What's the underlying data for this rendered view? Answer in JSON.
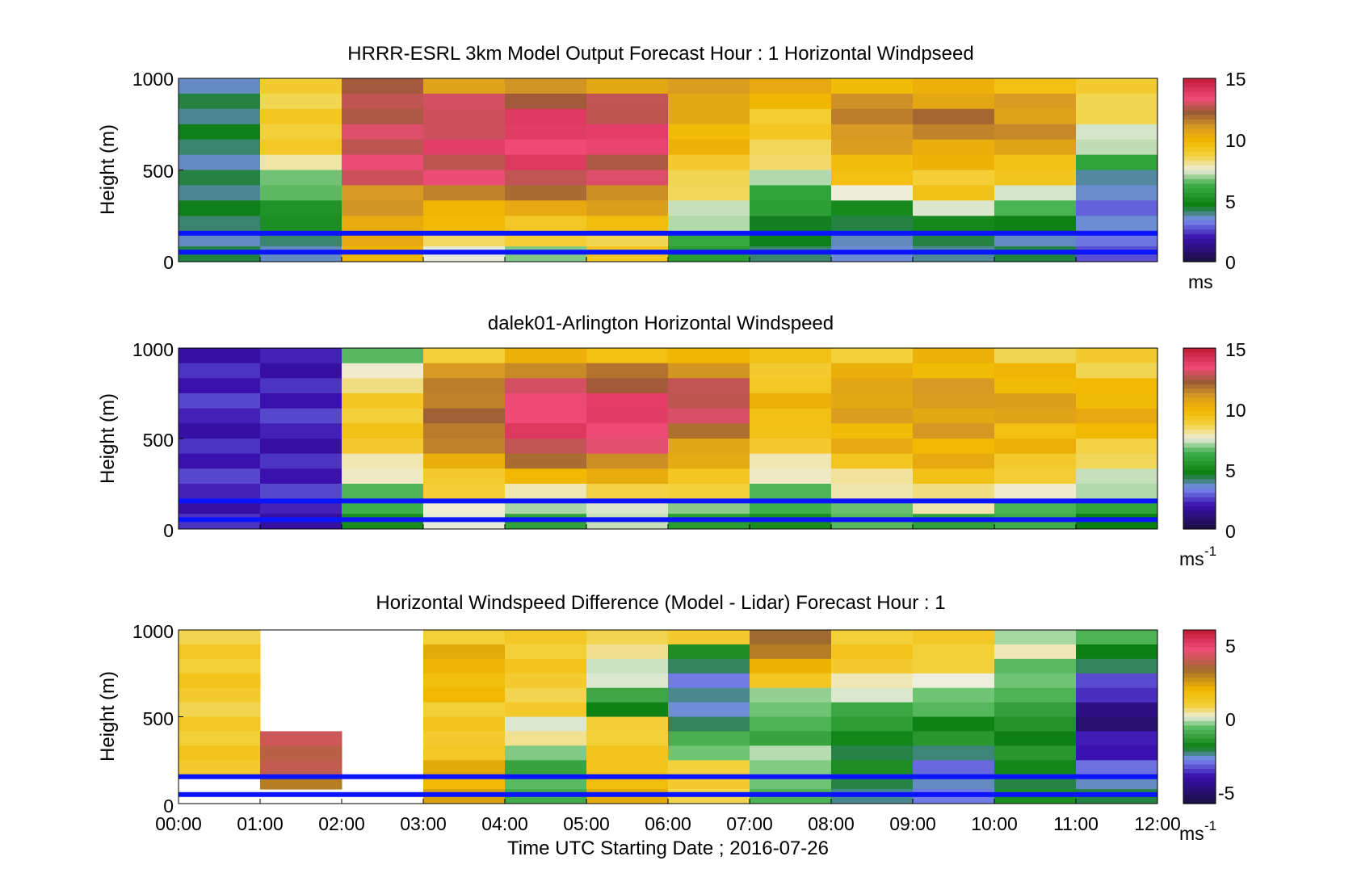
{
  "chart_data": [
    {
      "type": "heatmap",
      "title": "HRRR-ESRL 3km Model Output   Forecast Hour : 1 Horizontal Windpseed",
      "ylabel": "Height (m)",
      "ylim": [
        0,
        1000
      ],
      "yticks": [
        "0",
        "500",
        "1000"
      ],
      "x_bins_hours": [
        0,
        1,
        2,
        3,
        4,
        5,
        6,
        7,
        8,
        9,
        10,
        11,
        12
      ],
      "colorbar": {
        "ticks": [
          "0",
          "5",
          "10",
          "15"
        ],
        "range": [
          0,
          15
        ],
        "unit_label": "ms",
        "unit_sup": ""
      },
      "reference_lines_height_m": [
        155,
        52
      ],
      "reference_line_color": "#0a14ff",
      "columns_speed_profile": [
        [
          4,
          4,
          4,
          4,
          4,
          4,
          4,
          4,
          4,
          4
        ],
        [
          9,
          9,
          9,
          9,
          8,
          7,
          6,
          5,
          4,
          4
        ],
        [
          12,
          13,
          13,
          13,
          13,
          13,
          11,
          11,
          10,
          10
        ],
        [
          11,
          13,
          13,
          14,
          13,
          13,
          11,
          10,
          9,
          7
        ],
        [
          11,
          13,
          14,
          14,
          14,
          13,
          11,
          10,
          9,
          7
        ],
        [
          11,
          13,
          13,
          14,
          13,
          13,
          11,
          10,
          9,
          9
        ],
        [
          11,
          11,
          10,
          10,
          9,
          9,
          8,
          7,
          6,
          6
        ],
        [
          10,
          10,
          9,
          9,
          8,
          7,
          6,
          5,
          4,
          4
        ],
        [
          10,
          11,
          12,
          11,
          10,
          9,
          7,
          4,
          4,
          3
        ],
        [
          10,
          11,
          12,
          11,
          10,
          9,
          9,
          6,
          4,
          4
        ],
        [
          10,
          11,
          11,
          11,
          10,
          9,
          7,
          5,
          4,
          4
        ],
        [
          9,
          9,
          8,
          7,
          6,
          4,
          3,
          3,
          3,
          3
        ]
      ]
    },
    {
      "type": "heatmap",
      "title": "dalek01-Arlington  Horizontal Windspeed",
      "ylabel": "Height (m)",
      "ylim": [
        0,
        1000
      ],
      "yticks": [
        "0",
        "500",
        "1000"
      ],
      "x_bins_hours": [
        0,
        1,
        2,
        3,
        4,
        5,
        6,
        7,
        8,
        9,
        10,
        11,
        12
      ],
      "colorbar": {
        "ticks": [
          "0",
          "5",
          "10",
          "15"
        ],
        "range": [
          0,
          15
        ],
        "unit_label": "ms",
        "unit_sup": "-1"
      },
      "reference_lines_height_m": [
        155,
        52
      ],
      "reference_line_color": "#0a14ff",
      "columns_speed_profile": [
        [
          2,
          2,
          2,
          2,
          2,
          2,
          2,
          2,
          2,
          2
        ],
        [
          2,
          2,
          2,
          2,
          2,
          2,
          2,
          2,
          2,
          2
        ],
        [
          6,
          8,
          9,
          9,
          9,
          9,
          8,
          7,
          6,
          5
        ],
        [
          9,
          11,
          12,
          12,
          12,
          11,
          10,
          9,
          8,
          7
        ],
        [
          10,
          12,
          13,
          14,
          14,
          13,
          11,
          9,
          7,
          6
        ],
        [
          10,
          12,
          13,
          14,
          14,
          13,
          11,
          9,
          8,
          7
        ],
        [
          10,
          12,
          13,
          13,
          12,
          11,
          10,
          9,
          7,
          6
        ],
        [
          9,
          9,
          10,
          10,
          9,
          9,
          8,
          7,
          6,
          5
        ],
        [
          9,
          10,
          11,
          11,
          10,
          10,
          9,
          8,
          7,
          6
        ],
        [
          10,
          10,
          11,
          11,
          11,
          10,
          10,
          9,
          8,
          6
        ],
        [
          9,
          10,
          10,
          11,
          10,
          10,
          9,
          8,
          7,
          6
        ],
        [
          9,
          9,
          10,
          10,
          10,
          9,
          8,
          7,
          6,
          5
        ]
      ]
    },
    {
      "type": "heatmap",
      "title": "Horizontal Windspeed Difference (Model - Lidar) Forecast Hour : 1",
      "ylabel": "Height (m)",
      "xlabel": "Time UTC  Starting Date ; 2016-07-26",
      "ylim": [
        0,
        1000
      ],
      "yticks": [
        "0",
        "500",
        "1000"
      ],
      "xticks": [
        "00:00",
        "01:00",
        "02:00",
        "03:00",
        "04:00",
        "05:00",
        "06:00",
        "07:00",
        "08:00",
        "09:00",
        "10:00",
        "11:00",
        "12:00"
      ],
      "x_bins_hours": [
        0,
        1,
        2,
        3,
        4,
        5,
        6,
        7,
        8,
        9,
        10,
        11,
        12
      ],
      "colorbar": {
        "ticks": [
          "5",
          "0",
          "-5"
        ],
        "range": [
          -6,
          6
        ],
        "unit_label": "ms",
        "unit_sup": "-1"
      },
      "reference_lines_height_m": [
        155,
        52
      ],
      "reference_line_color": "#0a14ff",
      "columns_difference_profile": [
        [
          1,
          1,
          1,
          1,
          1,
          1,
          1,
          1,
          null,
          null
        ],
        [
          null,
          null,
          null,
          null,
          null,
          null,
          4,
          4,
          3,
          null
        ],
        [
          null,
          null,
          null,
          null,
          null,
          null,
          null,
          null,
          null,
          null
        ],
        [
          1,
          2,
          2,
          2,
          1,
          1,
          1,
          2,
          2,
          2
        ],
        [
          1,
          1,
          1,
          1,
          1,
          0,
          0,
          -1,
          -1,
          -1
        ],
        [
          1,
          0,
          0,
          -1,
          -2,
          1,
          1,
          1,
          2,
          2
        ],
        [
          1,
          -2,
          -3,
          -3,
          -3,
          -2,
          -1,
          0,
          1,
          1
        ],
        [
          3,
          3,
          2,
          0,
          -1,
          -1,
          -1,
          0,
          -1,
          -1
        ],
        [
          1,
          1,
          1,
          0,
          -1,
          -2,
          -2,
          -2,
          -2,
          -3
        ],
        [
          1,
          1,
          0,
          0,
          -1,
          -2,
          -2,
          -3,
          -3,
          -3
        ],
        [
          0,
          0,
          -1,
          -1,
          -1,
          -2,
          -2,
          -2,
          -2,
          -2
        ],
        [
          -1,
          -2,
          -3,
          -4,
          -5,
          -5,
          -4,
          -4,
          -3,
          -2
        ]
      ]
    }
  ]
}
